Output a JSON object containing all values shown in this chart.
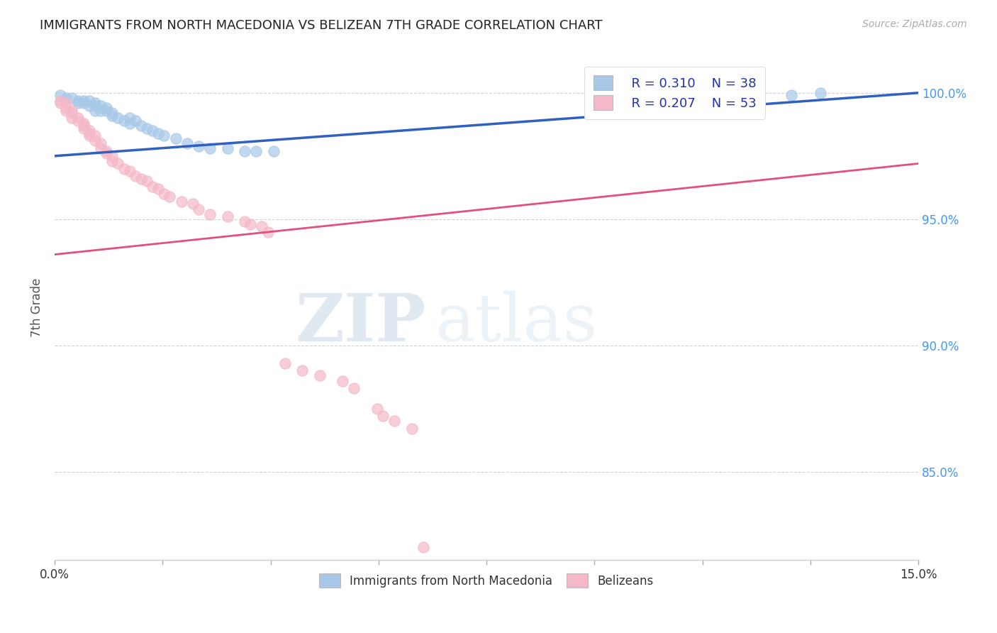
{
  "title": "IMMIGRANTS FROM NORTH MACEDONIA VS BELIZEAN 7TH GRADE CORRELATION CHART",
  "source": "Source: ZipAtlas.com",
  "ylabel": "7th Grade",
  "xmin": 0.0,
  "xmax": 0.15,
  "ymin": 0.815,
  "ymax": 1.015,
  "yticks": [
    0.85,
    0.9,
    0.95,
    1.0
  ],
  "ytick_labels": [
    "85.0%",
    "90.0%",
    "95.0%",
    "100.0%"
  ],
  "xticks": [
    0.0,
    0.01875,
    0.0375,
    0.05625,
    0.075,
    0.09375,
    0.1125,
    0.13125,
    0.15
  ],
  "legend_r1": "R = 0.310",
  "legend_n1": "N = 38",
  "legend_r2": "R = 0.207",
  "legend_n2": "N = 53",
  "blue_color": "#a8c8e8",
  "pink_color": "#f4b8c8",
  "blue_line_color": "#3060c0",
  "pink_line_color": "#e05080",
  "blue_scatter": [
    [
      0.001,
      0.999
    ],
    [
      0.002,
      0.998
    ],
    [
      0.003,
      0.998
    ],
    [
      0.004,
      0.997
    ],
    [
      0.004,
      0.996
    ],
    [
      0.005,
      0.997
    ],
    [
      0.005,
      0.996
    ],
    [
      0.006,
      0.997
    ],
    [
      0.006,
      0.995
    ],
    [
      0.007,
      0.996
    ],
    [
      0.007,
      0.995
    ],
    [
      0.007,
      0.993
    ],
    [
      0.008,
      0.995
    ],
    [
      0.008,
      0.993
    ],
    [
      0.009,
      0.994
    ],
    [
      0.009,
      0.993
    ],
    [
      0.01,
      0.992
    ],
    [
      0.01,
      0.991
    ],
    [
      0.011,
      0.99
    ],
    [
      0.012,
      0.989
    ],
    [
      0.013,
      0.99
    ],
    [
      0.013,
      0.988
    ],
    [
      0.014,
      0.989
    ],
    [
      0.015,
      0.987
    ],
    [
      0.016,
      0.986
    ],
    [
      0.017,
      0.985
    ],
    [
      0.018,
      0.984
    ],
    [
      0.019,
      0.983
    ],
    [
      0.021,
      0.982
    ],
    [
      0.023,
      0.98
    ],
    [
      0.025,
      0.979
    ],
    [
      0.027,
      0.978
    ],
    [
      0.03,
      0.978
    ],
    [
      0.033,
      0.977
    ],
    [
      0.035,
      0.977
    ],
    [
      0.038,
      0.977
    ],
    [
      0.128,
      0.999
    ],
    [
      0.133,
      1.0
    ]
  ],
  "pink_scatter": [
    [
      0.001,
      0.997
    ],
    [
      0.001,
      0.996
    ],
    [
      0.002,
      0.996
    ],
    [
      0.002,
      0.994
    ],
    [
      0.002,
      0.993
    ],
    [
      0.003,
      0.993
    ],
    [
      0.003,
      0.992
    ],
    [
      0.003,
      0.99
    ],
    [
      0.004,
      0.99
    ],
    [
      0.004,
      0.989
    ],
    [
      0.005,
      0.988
    ],
    [
      0.005,
      0.987
    ],
    [
      0.005,
      0.986
    ],
    [
      0.006,
      0.985
    ],
    [
      0.006,
      0.984
    ],
    [
      0.006,
      0.983
    ],
    [
      0.007,
      0.983
    ],
    [
      0.007,
      0.981
    ],
    [
      0.008,
      0.98
    ],
    [
      0.008,
      0.978
    ],
    [
      0.009,
      0.977
    ],
    [
      0.009,
      0.976
    ],
    [
      0.01,
      0.975
    ],
    [
      0.01,
      0.973
    ],
    [
      0.011,
      0.972
    ],
    [
      0.012,
      0.97
    ],
    [
      0.013,
      0.969
    ],
    [
      0.014,
      0.967
    ],
    [
      0.015,
      0.966
    ],
    [
      0.016,
      0.965
    ],
    [
      0.017,
      0.963
    ],
    [
      0.018,
      0.962
    ],
    [
      0.019,
      0.96
    ],
    [
      0.02,
      0.959
    ],
    [
      0.022,
      0.957
    ],
    [
      0.024,
      0.956
    ],
    [
      0.025,
      0.954
    ],
    [
      0.027,
      0.952
    ],
    [
      0.03,
      0.951
    ],
    [
      0.033,
      0.949
    ],
    [
      0.034,
      0.948
    ],
    [
      0.036,
      0.947
    ],
    [
      0.037,
      0.945
    ],
    [
      0.04,
      0.893
    ],
    [
      0.043,
      0.89
    ],
    [
      0.046,
      0.888
    ],
    [
      0.05,
      0.886
    ],
    [
      0.052,
      0.883
    ],
    [
      0.056,
      0.875
    ],
    [
      0.057,
      0.872
    ],
    [
      0.059,
      0.87
    ],
    [
      0.062,
      0.867
    ],
    [
      0.064,
      0.82
    ]
  ],
  "blue_line_x": [
    0.0,
    0.15
  ],
  "blue_line_y": [
    0.975,
    1.0
  ],
  "pink_line_x": [
    0.0,
    0.15
  ],
  "pink_line_y": [
    0.936,
    0.972
  ],
  "watermark_zip": "ZIP",
  "watermark_atlas": "atlas",
  "background_color": "#ffffff"
}
